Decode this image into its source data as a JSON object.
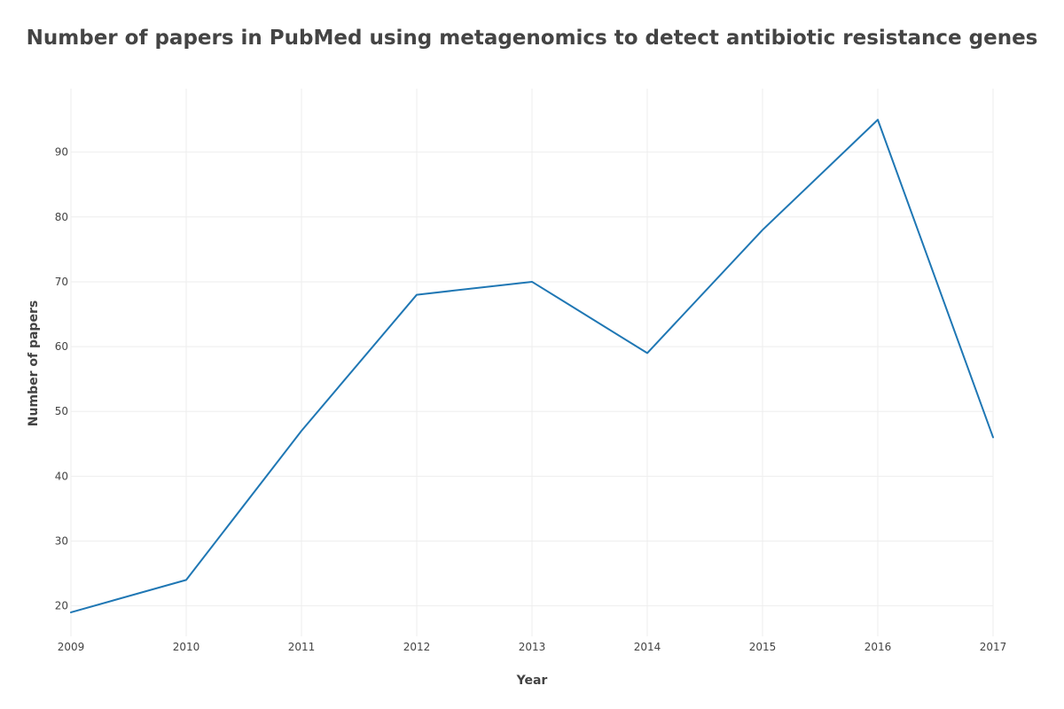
{
  "chart_data": {
    "type": "line",
    "title": "Number of papers in PubMed using metagenomics to detect antibiotic resistance genes",
    "xlabel": "Year",
    "ylabel": "Number of papers",
    "x": [
      2009,
      2010,
      2011,
      2012,
      2013,
      2014,
      2015,
      2016,
      2017
    ],
    "series": [
      {
        "name": "",
        "values": [
          19,
          24,
          47,
          68,
          70,
          59,
          78,
          95,
          46
        ]
      }
    ],
    "xlim": [
      2009,
      2017
    ],
    "ylim": [
      15.3,
      99.8
    ],
    "xticks": [
      2009,
      2010,
      2011,
      2012,
      2013,
      2014,
      2015,
      2016,
      2017
    ],
    "yticks": [
      20,
      30,
      40,
      50,
      60,
      70,
      80,
      90
    ],
    "grid": true,
    "legend": "none",
    "line_color": "#1f77b4"
  }
}
